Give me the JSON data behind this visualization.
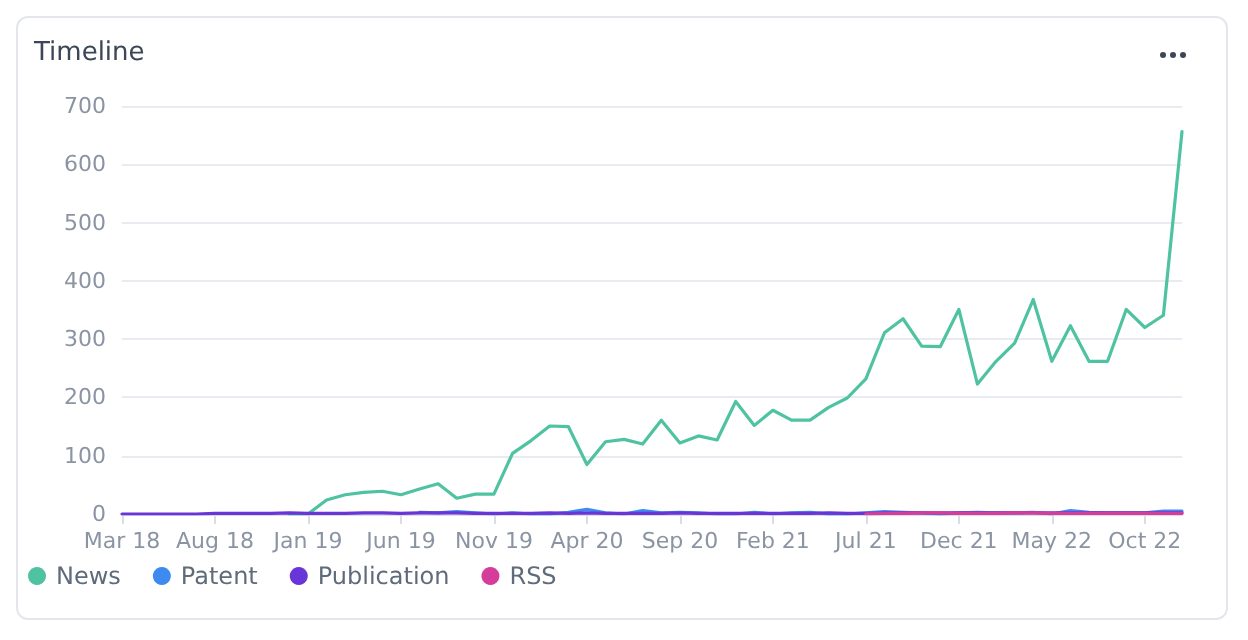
{
  "chart_data": {
    "type": "line",
    "title": "Timeline",
    "categories": [
      "Mar 18",
      null,
      null,
      null,
      null,
      "Aug 18",
      null,
      null,
      null,
      null,
      "Jan 19",
      null,
      null,
      null,
      null,
      "Jun 19",
      null,
      null,
      null,
      null,
      "Nov 19",
      null,
      null,
      null,
      null,
      "Apr 20",
      null,
      null,
      null,
      null,
      "Sep 20",
      null,
      null,
      null,
      null,
      "Feb 21",
      null,
      null,
      null,
      null,
      "Jul 21",
      null,
      null,
      null,
      null,
      "Dec 21",
      null,
      null,
      null,
      null,
      "May 22",
      null,
      null,
      null,
      null,
      "Oct 22",
      null,
      null
    ],
    "series": [
      {
        "name": "News",
        "color": "#4fc3a1",
        "values": [
          null,
          null,
          null,
          null,
          null,
          null,
          null,
          null,
          null,
          0,
          0,
          24,
          33,
          37,
          39,
          33,
          43,
          52,
          27,
          34,
          34,
          104,
          126,
          151,
          150,
          85,
          124,
          128,
          120,
          161,
          122,
          134,
          127,
          193,
          152,
          178,
          161,
          161,
          183,
          199,
          232,
          311,
          335,
          288,
          287,
          351,
          223,
          262,
          293,
          368,
          262,
          323,
          262,
          262,
          351,
          320,
          341,
          656
        ]
      },
      {
        "name": "Patent",
        "color": "#3d8bf0",
        "values": [
          null,
          null,
          null,
          null,
          null,
          null,
          null,
          null,
          null,
          null,
          null,
          null,
          null,
          null,
          null,
          null,
          3,
          2,
          4,
          2,
          0,
          2,
          0,
          0,
          3,
          8,
          2,
          0,
          6,
          2,
          3,
          2,
          0,
          0,
          3,
          0,
          2,
          3,
          0,
          0,
          2,
          4,
          3,
          2,
          0,
          2,
          3,
          2,
          2,
          3,
          0,
          6,
          3,
          2,
          2,
          2,
          5,
          5
        ]
      },
      {
        "name": "Publication",
        "color": "#6a35d8",
        "values": [
          0,
          0,
          0,
          0,
          0,
          1,
          1,
          1,
          1,
          2,
          1,
          1,
          1,
          2,
          2,
          1,
          2,
          2,
          2,
          1,
          1,
          1,
          1,
          2,
          1,
          2,
          1,
          1,
          1,
          1,
          2,
          1,
          1,
          1,
          1,
          1,
          1,
          1,
          2,
          1,
          1,
          2,
          2,
          2,
          2,
          2,
          2,
          2,
          2,
          2,
          2,
          2,
          2,
          2,
          2,
          2,
          2,
          2
        ]
      },
      {
        "name": "RSS",
        "color": "#d63d9a",
        "values": [
          null,
          null,
          null,
          null,
          null,
          null,
          null,
          null,
          null,
          null,
          null,
          null,
          null,
          null,
          null,
          null,
          null,
          null,
          null,
          null,
          null,
          null,
          null,
          null,
          null,
          null,
          null,
          null,
          null,
          null,
          null,
          null,
          null,
          null,
          null,
          null,
          null,
          null,
          null,
          null,
          0,
          1,
          1,
          2,
          2,
          1,
          1,
          1,
          2,
          2,
          1,
          1,
          1,
          1,
          1,
          1,
          1,
          1
        ]
      }
    ],
    "ylim": [
      0,
      700
    ],
    "yticks": [
      0,
      100,
      200,
      300,
      400,
      500,
      600,
      700
    ],
    "grid": "y",
    "legend": "bottom left",
    "marker": "none",
    "line_style": "solid"
  }
}
